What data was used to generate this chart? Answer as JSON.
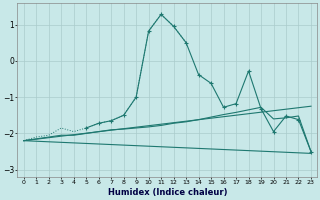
{
  "xlabel": "Humidex (Indice chaleur)",
  "bg_color": "#c8e8e8",
  "grid_color": "#aacccc",
  "line_color": "#1e7870",
  "xlim": [
    -0.5,
    23.5
  ],
  "ylim": [
    -3.2,
    1.6
  ],
  "yticks": [
    -3,
    -2,
    -1,
    0,
    1
  ],
  "series_dotted_x": [
    0,
    1,
    2,
    3,
    4,
    5,
    6,
    7,
    8,
    9,
    10,
    11,
    12,
    13
  ],
  "series_dotted_y": [
    -2.2,
    -2.1,
    -2.05,
    -1.85,
    -1.95,
    -1.85,
    -1.72,
    -1.65,
    -1.5,
    -1.0,
    0.82,
    1.28,
    0.95,
    0.5
  ],
  "series_main_x": [
    5,
    6,
    7,
    8,
    9,
    10,
    11,
    12,
    13,
    14,
    15,
    16,
    17,
    18,
    19,
    20,
    21,
    22,
    23
  ],
  "series_main_y": [
    -1.85,
    -1.72,
    -1.65,
    -1.5,
    -1.0,
    0.82,
    1.28,
    0.95,
    0.5,
    -0.38,
    -0.62,
    -1.28,
    -1.18,
    -0.28,
    -1.32,
    -1.95,
    -1.52,
    -1.62,
    -2.5
  ],
  "series_trend1_x": [
    0,
    23
  ],
  "series_trend1_y": [
    -2.2,
    -1.25
  ],
  "series_trend2_x": [
    0,
    23
  ],
  "series_trend2_y": [
    -2.2,
    -2.55
  ],
  "series_smooth_x": [
    0,
    1,
    2,
    3,
    4,
    5,
    6,
    7,
    8,
    9,
    10,
    11,
    12,
    13,
    14,
    15,
    16,
    17,
    18,
    19,
    20,
    21,
    22,
    23
  ],
  "series_smooth_y": [
    -2.2,
    -2.15,
    -2.1,
    -2.05,
    -2.05,
    -2.0,
    -1.95,
    -1.9,
    -1.88,
    -1.85,
    -1.82,
    -1.78,
    -1.72,
    -1.68,
    -1.62,
    -1.55,
    -1.48,
    -1.42,
    -1.35,
    -1.28,
    -1.6,
    -1.57,
    -1.52,
    -2.5
  ]
}
